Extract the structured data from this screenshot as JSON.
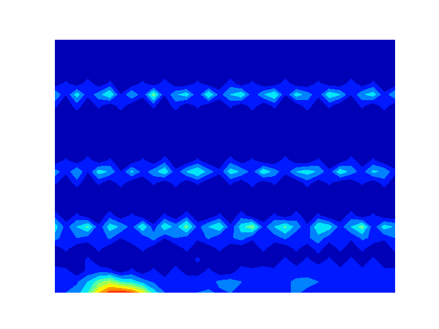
{
  "chart_data": {
    "type": "contour",
    "x": [
      0,
      1,
      2,
      3,
      4,
      5,
      6,
      7,
      8,
      9,
      10,
      11,
      12,
      13,
      14,
      15,
      16,
      17,
      18,
      19,
      20,
      21,
      22,
      23,
      24,
      25,
      26,
      27,
      28,
      29,
      30,
      31
    ],
    "y": [
      0,
      1,
      2,
      3,
      4,
      5,
      6,
      7,
      8,
      9,
      10,
      11,
      12,
      13,
      14,
      15,
      16,
      17,
      18,
      19,
      20,
      21,
      22,
      23
    ],
    "z": [
      [
        18,
        20,
        25,
        40,
        70,
        85,
        90,
        82,
        65,
        35,
        20,
        18,
        15,
        20,
        22,
        18,
        20,
        15,
        18,
        20,
        15,
        18,
        22,
        15,
        18,
        20,
        15,
        18,
        20,
        15,
        12,
        15
      ],
      [
        20,
        15,
        18,
        30,
        45,
        55,
        40,
        35,
        25,
        18,
        15,
        12,
        20,
        18,
        15,
        22,
        25,
        20,
        18,
        15,
        20,
        18,
        22,
        25,
        20,
        18,
        15,
        20,
        18,
        15,
        12,
        15
      ],
      [
        15,
        12,
        2,
        12,
        15,
        12,
        2,
        12,
        2,
        12,
        2,
        15,
        2,
        2,
        12,
        2,
        2,
        15,
        12,
        15,
        12,
        12,
        15,
        12,
        18,
        15,
        12,
        15,
        12,
        18,
        12,
        12
      ],
      [
        2,
        2,
        2,
        12,
        2,
        2,
        2,
        2,
        2,
        2,
        2,
        2,
        2,
        12,
        2,
        2,
        2,
        2,
        2,
        2,
        2,
        12,
        2,
        12,
        2,
        12,
        2,
        12,
        2,
        12,
        2,
        2
      ],
      [
        2,
        12,
        2,
        2,
        12,
        2,
        2,
        2,
        12,
        2,
        2,
        2,
        12,
        2,
        2,
        12,
        2,
        2,
        2,
        12,
        2,
        2,
        12,
        2,
        15,
        2,
        12,
        2,
        12,
        2,
        2,
        12
      ],
      [
        25,
        12,
        20,
        15,
        12,
        22,
        10,
        18,
        12,
        25,
        10,
        20,
        15,
        12,
        22,
        10,
        18,
        25,
        12,
        20,
        15,
        22,
        12,
        18,
        25,
        15,
        20,
        12,
        22,
        18,
        12,
        20
      ],
      [
        35,
        15,
        30,
        42,
        12,
        35,
        28,
        15,
        40,
        12,
        38,
        25,
        45,
        15,
        30,
        40,
        12,
        35,
        48,
        15,
        30,
        42,
        25,
        12,
        40,
        35,
        15,
        30,
        45,
        12,
        35,
        28
      ],
      [
        15,
        2,
        12,
        2,
        2,
        15,
        2,
        12,
        2,
        2,
        12,
        2,
        15,
        2,
        2,
        12,
        2,
        15,
        2,
        2,
        12,
        2,
        15,
        2,
        12,
        2,
        2,
        15,
        2,
        12,
        2,
        2
      ],
      [
        2,
        2,
        2,
        2,
        2,
        2,
        2,
        2,
        2,
        2,
        2,
        2,
        2,
        2,
        2,
        2,
        2,
        2,
        2,
        2,
        2,
        2,
        2,
        2,
        2,
        2,
        2,
        2,
        2,
        2,
        2,
        2
      ],
      [
        2,
        2,
        2,
        2,
        2,
        2,
        2,
        2,
        2,
        2,
        2,
        2,
        2,
        2,
        2,
        2,
        2,
        2,
        2,
        2,
        2,
        2,
        2,
        2,
        2,
        2,
        2,
        2,
        2,
        2,
        2,
        2
      ],
      [
        12,
        2,
        15,
        2,
        12,
        2,
        15,
        2,
        2,
        12,
        2,
        15,
        2,
        12,
        2,
        2,
        12,
        2,
        15,
        2,
        12,
        2,
        2,
        15,
        2,
        12,
        2,
        2,
        12,
        2,
        15,
        2
      ],
      [
        25,
        12,
        30,
        10,
        35,
        28,
        10,
        32,
        15,
        25,
        38,
        12,
        30,
        40,
        25,
        12,
        35,
        28,
        15,
        38,
        25,
        12,
        30,
        35,
        28,
        12,
        38,
        25,
        15,
        32,
        28,
        12
      ],
      [
        2,
        12,
        2,
        15,
        2,
        12,
        2,
        2,
        12,
        2,
        15,
        2,
        2,
        12,
        2,
        2,
        15,
        2,
        12,
        2,
        2,
        15,
        2,
        2,
        12,
        2,
        2,
        15,
        2,
        12,
        2,
        2
      ],
      [
        2,
        2,
        2,
        2,
        2,
        2,
        2,
        2,
        2,
        2,
        2,
        2,
        2,
        2,
        2,
        2,
        2,
        2,
        2,
        2,
        2,
        2,
        2,
        2,
        2,
        2,
        2,
        2,
        2,
        2,
        2,
        2
      ],
      [
        2,
        2,
        2,
        2,
        2,
        2,
        2,
        2,
        2,
        2,
        2,
        2,
        2,
        2,
        2,
        2,
        2,
        2,
        2,
        2,
        2,
        2,
        2,
        2,
        2,
        2,
        2,
        2,
        2,
        2,
        2,
        2
      ],
      [
        2,
        2,
        2,
        2,
        2,
        2,
        2,
        2,
        2,
        2,
        2,
        2,
        2,
        2,
        2,
        2,
        2,
        2,
        2,
        2,
        2,
        2,
        2,
        2,
        2,
        2,
        2,
        2,
        2,
        2,
        2,
        2
      ],
      [
        2,
        2,
        2,
        2,
        2,
        2,
        2,
        2,
        2,
        2,
        2,
        2,
        2,
        2,
        2,
        2,
        2,
        2,
        2,
        2,
        2,
        2,
        2,
        2,
        2,
        2,
        2,
        2,
        2,
        2,
        2,
        2
      ],
      [
        12,
        2,
        15,
        2,
        12,
        2,
        15,
        2,
        2,
        12,
        2,
        15,
        2,
        12,
        2,
        2,
        12,
        2,
        15,
        2,
        12,
        2,
        2,
        15,
        2,
        12,
        2,
        2,
        12,
        2,
        15,
        2
      ],
      [
        30,
        10,
        35,
        12,
        25,
        40,
        10,
        30,
        12,
        45,
        10,
        28,
        35,
        10,
        40,
        15,
        30,
        38,
        12,
        28,
        40,
        10,
        35,
        25,
        12,
        38,
        30,
        10,
        28,
        35,
        12,
        30
      ],
      [
        2,
        12,
        2,
        15,
        2,
        12,
        2,
        2,
        12,
        2,
        15,
        2,
        2,
        12,
        2,
        2,
        15,
        2,
        12,
        2,
        2,
        15,
        2,
        2,
        12,
        2,
        2,
        15,
        2,
        12,
        2,
        2
      ],
      [
        2,
        2,
        2,
        2,
        2,
        2,
        2,
        2,
        2,
        2,
        2,
        2,
        2,
        2,
        2,
        2,
        2,
        2,
        2,
        2,
        2,
        2,
        2,
        2,
        2,
        2,
        2,
        2,
        2,
        2,
        2,
        2
      ],
      [
        2,
        2,
        2,
        2,
        2,
        2,
        2,
        2,
        2,
        2,
        2,
        2,
        2,
        2,
        2,
        2,
        2,
        2,
        2,
        2,
        2,
        2,
        2,
        2,
        2,
        2,
        2,
        2,
        2,
        2,
        2,
        2
      ],
      [
        2,
        2,
        2,
        2,
        2,
        2,
        2,
        2,
        2,
        2,
        2,
        2,
        2,
        2,
        2,
        2,
        2,
        2,
        2,
        2,
        2,
        2,
        2,
        2,
        2,
        2,
        2,
        2,
        2,
        2,
        2,
        2
      ],
      [
        2,
        2,
        2,
        2,
        2,
        2,
        2,
        2,
        2,
        2,
        2,
        2,
        2,
        2,
        2,
        2,
        2,
        2,
        2,
        2,
        2,
        2,
        2,
        2,
        2,
        2,
        2,
        2,
        2,
        2,
        2,
        2
      ]
    ],
    "levels": [
      0,
      10,
      20,
      30,
      40,
      50,
      60,
      70,
      80,
      90,
      100
    ],
    "zlim": [
      0,
      100
    ],
    "xlim": [
      0,
      31
    ],
    "ylim": [
      0,
      23
    ],
    "tick_labels": false
  }
}
